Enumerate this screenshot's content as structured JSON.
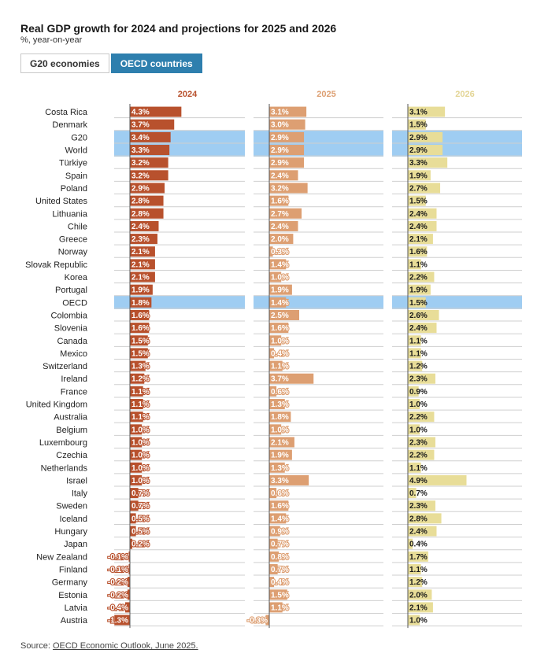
{
  "header": {
    "title": "Real GDP growth for 2024 and projections for 2025 and 2026",
    "subtitle": "%, year-on-year"
  },
  "toggles": [
    {
      "label": "G20 economies",
      "active": false
    },
    {
      "label": "OECD countries",
      "active": true
    }
  ],
  "source": {
    "prefix": "Source: ",
    "link_text": "OECD Economic Outlook, June 2025."
  },
  "colors": {
    "y2024": "#b8512d",
    "y2025": "#dd9f72",
    "y2026": "#e8dd98",
    "highlight": "#9fcdf2",
    "header2024": "#b8512d",
    "header2025": "#dd9f72",
    "header2026": "#e3d595"
  },
  "chart_data": {
    "type": "bar",
    "orientation": "horizontal",
    "series": [
      {
        "name": "2024",
        "values": [
          4.3,
          3.7,
          3.4,
          3.3,
          3.2,
          3.2,
          2.9,
          2.8,
          2.8,
          2.4,
          2.3,
          2.1,
          2.1,
          2.1,
          1.9,
          1.8,
          1.6,
          1.6,
          1.5,
          1.5,
          1.3,
          1.2,
          1.1,
          1.1,
          1.1,
          1.0,
          1.0,
          1.0,
          1.0,
          1.0,
          0.7,
          0.7,
          0.5,
          0.5,
          0.2,
          -0.1,
          -0.1,
          -0.2,
          -0.2,
          -0.4,
          -1.3
        ]
      },
      {
        "name": "2025",
        "values": [
          3.1,
          3.0,
          2.9,
          2.9,
          2.9,
          2.4,
          3.2,
          1.6,
          2.7,
          2.4,
          2.0,
          0.3,
          1.4,
          1.0,
          1.9,
          1.4,
          2.5,
          1.6,
          1.0,
          0.4,
          1.1,
          3.7,
          0.6,
          1.3,
          1.8,
          1.0,
          2.1,
          1.9,
          1.3,
          3.3,
          0.6,
          1.6,
          1.4,
          0.9,
          0.7,
          0.8,
          0.7,
          0.4,
          1.5,
          1.1,
          -0.3
        ]
      },
      {
        "name": "2026",
        "values": [
          3.1,
          1.5,
          2.9,
          2.9,
          3.3,
          1.9,
          2.7,
          1.5,
          2.4,
          2.4,
          2.1,
          1.6,
          1.1,
          2.2,
          1.9,
          1.5,
          2.6,
          2.4,
          1.1,
          1.1,
          1.2,
          2.3,
          0.9,
          1.0,
          2.2,
          1.0,
          2.3,
          2.2,
          1.1,
          4.9,
          0.7,
          2.3,
          2.8,
          2.4,
          0.4,
          1.7,
          1.1,
          1.2,
          2.0,
          2.1,
          1.0
        ]
      }
    ],
    "categories": [
      "Costa Rica",
      "Denmark",
      "G20",
      "World",
      "Türkiye",
      "Spain",
      "Poland",
      "United States",
      "Lithuania",
      "Chile",
      "Greece",
      "Norway",
      "Slovak Republic",
      "Korea",
      "Portugal",
      "OECD",
      "Colombia",
      "Slovenia",
      "Canada",
      "Mexico",
      "Switzerland",
      "Ireland",
      "France",
      "United Kingdom",
      "Australia",
      "Belgium",
      "Luxembourg",
      "Czechia",
      "Netherlands",
      "Israel",
      "Italy",
      "Sweden",
      "Iceland",
      "Hungary",
      "Japan",
      "New Zealand",
      "Finland",
      "Germany",
      "Estonia",
      "Latvia",
      "Austria"
    ],
    "highlighted": [
      "G20",
      "World",
      "OECD"
    ],
    "value_suffix": "%",
    "grid": true
  }
}
